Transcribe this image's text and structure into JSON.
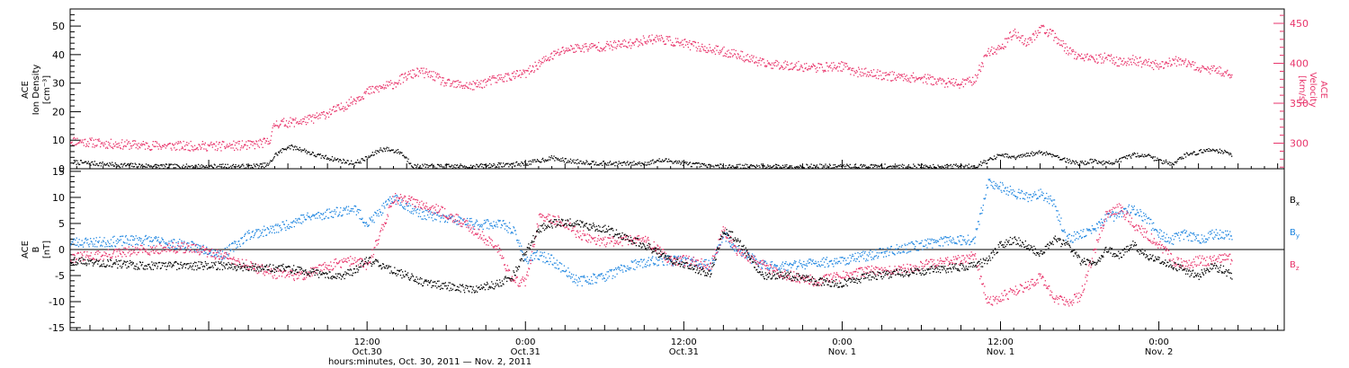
{
  "colors": {
    "black": "#000000",
    "pink": "#e8336a",
    "blue": "#1f86e0"
  },
  "xaxis": {
    "title": "hours:minutes, Oct. 30, 2011 — Nov. 2, 2011",
    "range_hours": [
      0,
      72
    ],
    "ticks": [
      {
        "hour": 12,
        "time": "12:00",
        "date": "Oct.30"
      },
      {
        "hour": 24,
        "time": "0:00",
        "date": "Oct.31"
      },
      {
        "hour": 36,
        "time": "12:00",
        "date": "Oct.31"
      },
      {
        "hour": 48,
        "time": "0:00",
        "date": "Nov. 1"
      },
      {
        "hour": 60,
        "time": "12:00",
        "date": "Nov. 1"
      },
      {
        "hour": 72,
        "time": "0:00",
        "date": "Nov. 2"
      }
    ]
  },
  "top_panel": {
    "left_label": [
      "ACE",
      "Ion Density",
      "[cm⁻³]"
    ],
    "right_label": [
      "ACE",
      "Velocity",
      "[km/s]"
    ]
  },
  "bottom_panel": {
    "left_label": [
      "ACE",
      "B",
      "[nT]"
    ],
    "legend": [
      "Bx",
      "By",
      "Bz"
    ]
  },
  "chart_data": [
    {
      "type": "scatter",
      "panel": "top",
      "title": "",
      "ylabel": "ACE Ion Density [cm⁻³]",
      "ylabel_right": "ACE Velocity [km/s]",
      "x_unit": "hours since Oct. 30, 2011 00:00",
      "xlim": [
        -10.5,
        81.5
      ],
      "ylim": [
        0,
        56
      ],
      "yticks": [
        0,
        10,
        20,
        30,
        40,
        50
      ],
      "ylim_right": [
        268,
        468
      ],
      "yticks_right": [
        300,
        350,
        400,
        450
      ],
      "series": [
        {
          "name": "",
          "axis": "left",
          "color": "#000000",
          "x": [
            -10.3,
            -7,
            -3,
            0,
            3,
            4.5,
            5,
            6,
            7,
            7.5,
            8,
            9,
            10,
            11,
            12,
            13,
            13.5,
            14.5,
            15.5,
            16,
            17,
            20,
            24,
            26,
            27,
            30,
            33,
            34,
            35,
            36,
            38,
            40,
            42,
            44,
            46,
            48,
            50,
            52,
            54,
            56,
            57,
            58,
            59,
            60,
            61,
            62,
            63,
            64,
            65,
            66,
            67,
            68,
            69,
            70,
            71,
            72,
            73,
            74,
            75,
            76,
            77,
            77.5
          ],
          "y": [
            2.5,
            1.5,
            1,
            1,
            1,
            1.5,
            5,
            8,
            7,
            6,
            5,
            4,
            3,
            2,
            4,
            7,
            7,
            6,
            1,
            1,
            1,
            1,
            2,
            4,
            3,
            2,
            2,
            3,
            3,
            2,
            1,
            1,
            1,
            1,
            1,
            1,
            1,
            1,
            1,
            1,
            1,
            1,
            3,
            5,
            4,
            5,
            6,
            5,
            3,
            2,
            3,
            2,
            3,
            5,
            5,
            3,
            2,
            5,
            6,
            7,
            6,
            5
          ]
        },
        {
          "name": "",
          "axis": "right",
          "color": "#e8336a",
          "x": [
            -10.5,
            -8,
            -5,
            -2,
            0,
            1,
            3,
            4.5,
            5,
            7,
            8,
            10,
            12,
            14,
            15,
            16,
            17,
            18,
            20,
            22,
            24,
            25,
            26,
            27,
            28,
            30,
            32,
            33,
            34,
            35,
            36,
            38,
            40,
            42,
            44,
            46,
            48,
            49,
            50,
            52,
            54,
            56,
            57,
            58,
            59,
            60,
            61,
            62,
            63,
            64,
            65,
            66,
            67,
            68,
            69,
            70,
            71,
            72,
            73,
            74,
            75,
            76,
            77,
            77.5
          ],
          "y": [
            304,
            300,
            298,
            297,
            297,
            297,
            298,
            302,
            325,
            328,
            332,
            345,
            365,
            375,
            385,
            390,
            385,
            375,
            372,
            382,
            388,
            400,
            410,
            418,
            420,
            422,
            425,
            430,
            432,
            428,
            425,
            418,
            412,
            400,
            398,
            395,
            397,
            390,
            388,
            384,
            382,
            376,
            375,
            380,
            415,
            420,
            440,
            425,
            445,
            435,
            418,
            408,
            405,
            408,
            402,
            405,
            400,
            398,
            404,
            400,
            395,
            392,
            390,
            388
          ]
        }
      ]
    },
    {
      "type": "scatter",
      "panel": "bottom",
      "title": "",
      "ylabel": "ACE B [nT]",
      "x_unit": "hours since Oct. 30, 2011 00:00",
      "xlim": [
        -10.5,
        81.5
      ],
      "ylim": [
        -15.5,
        15.5
      ],
      "yticks": [
        -15,
        -10,
        -5,
        0,
        5,
        10,
        15
      ],
      "series": [
        {
          "name": "Bx",
          "color": "#000000",
          "x": [
            -10.5,
            -8,
            -5,
            -2,
            0,
            1,
            4.5,
            6,
            8,
            10,
            11,
            12,
            14,
            16,
            18,
            20,
            22,
            23,
            25,
            26,
            27,
            28,
            30,
            32,
            33,
            35,
            36,
            38,
            39,
            40,
            42,
            44,
            46,
            48,
            50,
            52,
            54,
            56,
            58,
            59,
            60,
            61,
            62,
            63,
            64,
            65,
            66,
            67,
            68,
            69,
            70,
            71,
            72,
            73,
            74,
            75,
            76,
            77,
            77.5
          ],
          "y": [
            -2,
            -2.5,
            -3,
            -3,
            -3,
            -3,
            -3.5,
            -3.5,
            -4.5,
            -5,
            -4,
            -2,
            -4,
            -6,
            -7,
            -7.5,
            -6.5,
            -5,
            4,
            5,
            5.5,
            5,
            4,
            2,
            1,
            -2,
            -3,
            -4.5,
            4,
            2,
            -5,
            -5,
            -6,
            -6.5,
            -5,
            -4.5,
            -4,
            -3.5,
            -3,
            -2,
            1,
            2,
            1,
            -1,
            2,
            1,
            -2,
            -3,
            0,
            -1,
            1,
            -1,
            -2,
            -3,
            -4,
            -5,
            -3,
            -4,
            -5
          ]
        },
        {
          "name": "By",
          "color": "#1f86e0",
          "x": [
            -10.5,
            -8,
            -5,
            -2,
            0,
            1,
            3,
            5,
            7,
            9,
            11,
            12,
            14,
            16,
            18,
            20,
            22,
            23,
            24,
            25,
            26,
            27,
            28,
            30,
            32,
            34,
            36,
            38,
            39,
            40,
            42,
            44,
            46,
            48,
            50,
            52,
            54,
            56,
            57,
            58,
            59,
            60,
            61,
            62,
            63,
            64,
            65,
            66,
            67,
            68,
            69,
            70,
            71,
            72,
            73,
            74,
            75,
            76,
            77,
            77.5
          ],
          "y": [
            1.5,
            1.5,
            2,
            1,
            0,
            -1,
            3,
            4,
            6,
            7,
            8,
            5,
            10,
            7,
            6,
            5,
            5,
            4,
            -2,
            -1,
            -2,
            -4,
            -6,
            -5,
            -3,
            -2,
            -2,
            -3,
            3,
            0,
            -3,
            -3,
            -2.5,
            -2,
            -1,
            0,
            1,
            2,
            2,
            2,
            13,
            12,
            11,
            10,
            11,
            9,
            2,
            3,
            4,
            6,
            7,
            8,
            6,
            3,
            2,
            3,
            2,
            3,
            3,
            3
          ]
        },
        {
          "name": "Bz",
          "color": "#e8336a",
          "x": [
            -10.5,
            -8,
            -5,
            -2,
            0,
            1,
            3,
            5,
            7,
            9,
            11,
            12,
            14,
            16,
            18,
            20,
            22,
            23,
            24,
            25,
            26,
            27,
            28,
            30,
            32,
            33,
            35,
            36,
            38,
            39,
            40,
            42,
            44,
            46,
            48,
            50,
            52,
            54,
            56,
            57,
            58,
            59,
            60,
            61,
            62,
            63,
            64,
            65,
            66,
            67,
            68,
            69,
            70,
            71,
            72,
            73,
            74,
            75,
            76,
            77,
            77.5
          ],
          "y": [
            -1.5,
            -1,
            0,
            0.5,
            -0.5,
            -1,
            -3,
            -4.5,
            -5,
            -3,
            -2,
            -3,
            10,
            9,
            7,
            4,
            0,
            -6,
            -6,
            6,
            6,
            5,
            3,
            1.5,
            2,
            2,
            -2,
            -2,
            -3,
            4,
            0,
            -3,
            -5,
            -6,
            -5,
            -4,
            -4,
            -3,
            -2,
            -2,
            -1,
            -10,
            -9,
            -8,
            -7,
            -5,
            -9,
            -10,
            -9,
            -1,
            7,
            8,
            5,
            3,
            1,
            -2,
            -3,
            -2,
            -2,
            -1,
            -2
          ]
        }
      ]
    }
  ]
}
